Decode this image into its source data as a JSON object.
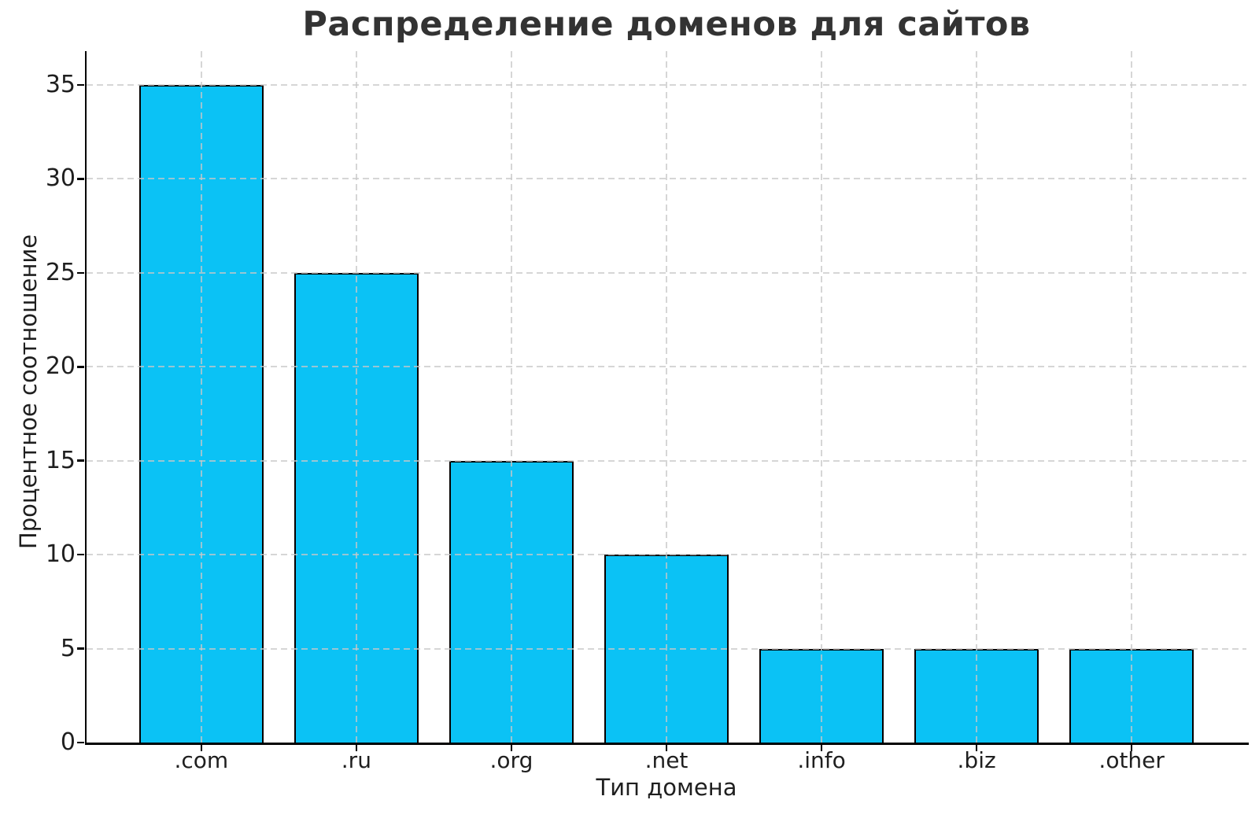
{
  "page": {
    "background_color": "#ffffff"
  },
  "chart_data": {
    "type": "bar",
    "title": "Распределение доменов для сайтов",
    "xlabel": "Тип домена",
    "ylabel": "Процентное соотношение",
    "categories": [
      ".com",
      ".ru",
      ".org",
      ".net",
      ".info",
      ".biz",
      ".other"
    ],
    "values": [
      35,
      25,
      15,
      10,
      5,
      5,
      5
    ],
    "yticks": [
      0,
      5,
      10,
      15,
      20,
      25,
      30,
      35
    ],
    "ylim": [
      0,
      36.8
    ],
    "bar_color": "#0BC2F5",
    "bar_edge_color": "#000000",
    "bar_width_fraction": 0.8,
    "grid": "on",
    "grid_color": "#cccccc",
    "grid_style": "dashed",
    "legend_position": "none"
  }
}
